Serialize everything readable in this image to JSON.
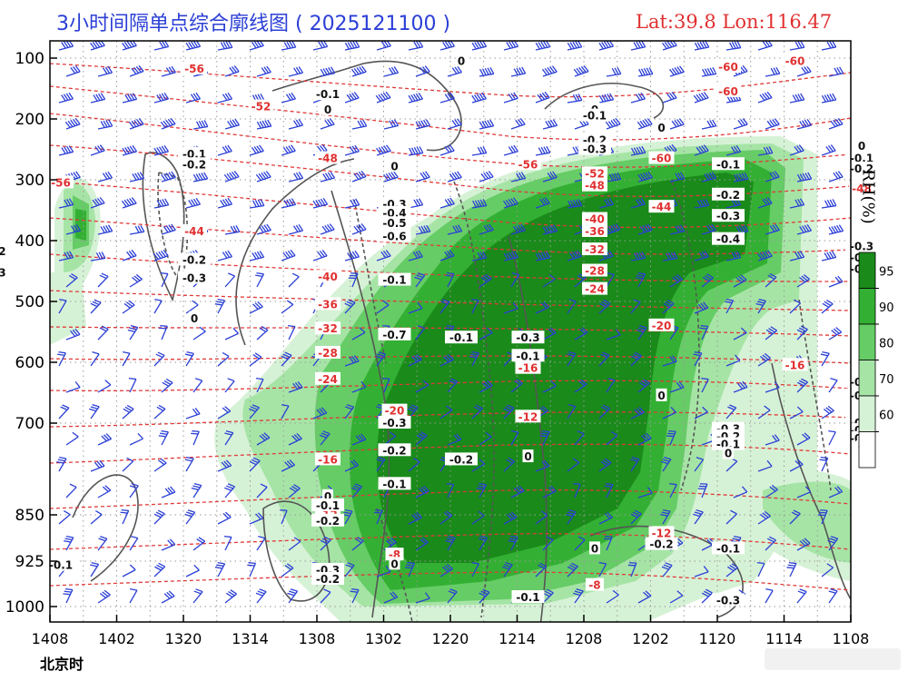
{
  "header": {
    "title": "3小时间隔单点综合廓线图 ( 2025121100 )",
    "location": "Lat:39.8  Lon:116.47"
  },
  "footer": {
    "time_zone_label": "北京时"
  },
  "colorbar": {
    "label": "RH(%)",
    "ticks": [
      "95",
      "90",
      "80",
      "70",
      "60"
    ],
    "colors": [
      "#1a8a1a",
      "#33b033",
      "#66cc66",
      "#a6e4a6",
      "#d6f2d6",
      "#ffffff"
    ]
  },
  "chart_data": {
    "type": "heatmap",
    "title": "3小时间隔单点综合廓线图 ( 2025121100 )",
    "xlabel": "北京时",
    "ylabel": "",
    "x_ticks": [
      "1408",
      "1402",
      "1320",
      "1314",
      "1308",
      "1302",
      "1220",
      "1214",
      "1208",
      "1202",
      "1120",
      "1114",
      "1108"
    ],
    "y_ticks": [
      "100",
      "200",
      "300",
      "400",
      "500",
      "600",
      "700",
      "850",
      "925",
      "1000"
    ],
    "y_levels_hpa": [
      100,
      200,
      300,
      400,
      500,
      600,
      700,
      850,
      925,
      1000
    ],
    "y_axis_inverted": true,
    "temperature_contour_labels": [
      {
        "value": "-56",
        "x": "1408",
        "y_hpa": 305
      },
      {
        "value": "-56",
        "x": "1320",
        "y_hpa": 118
      },
      {
        "value": "-52",
        "x": "1314",
        "y_hpa": 180
      },
      {
        "value": "-48",
        "x": "1308",
        "y_hpa": 265
      },
      {
        "value": "-44",
        "x": "1320",
        "y_hpa": 385
      },
      {
        "value": "-44",
        "x": "1302",
        "y_hpa": 365
      },
      {
        "value": "-40",
        "x": "1308",
        "y_hpa": 460
      },
      {
        "value": "-36",
        "x": "1308",
        "y_hpa": 505
      },
      {
        "value": "-32",
        "x": "1308",
        "y_hpa": 545
      },
      {
        "value": "-28",
        "x": "1308",
        "y_hpa": 585
      },
      {
        "value": "-24",
        "x": "1308",
        "y_hpa": 628
      },
      {
        "value": "-20",
        "x": "1302",
        "y_hpa": 680
      },
      {
        "value": "-16",
        "x": "1308",
        "y_hpa": 760
      },
      {
        "value": "-12",
        "x": "1308",
        "y_hpa": 850
      },
      {
        "value": "-8",
        "x": "1302",
        "y_hpa": 915
      },
      {
        "value": "-60",
        "x": "1120",
        "y_hpa": 115
      },
      {
        "value": "-60",
        "x": "1120",
        "y_hpa": 155
      },
      {
        "value": "-60",
        "x": "1114",
        "y_hpa": 105
      },
      {
        "value": "-60",
        "x": "1202",
        "y_hpa": 265
      },
      {
        "value": "-56",
        "x": "1214",
        "y_hpa": 275
      },
      {
        "value": "-52",
        "x": "1208",
        "y_hpa": 290
      },
      {
        "value": "-48",
        "x": "1208",
        "y_hpa": 310
      },
      {
        "value": "-48",
        "x": "1108",
        "y_hpa": 315
      },
      {
        "value": "-44",
        "x": "1202",
        "y_hpa": 345
      },
      {
        "value": "-40",
        "x": "1208",
        "y_hpa": 365
      },
      {
        "value": "-36",
        "x": "1208",
        "y_hpa": 385
      },
      {
        "value": "-32",
        "x": "1208",
        "y_hpa": 415
      },
      {
        "value": "-28",
        "x": "1208",
        "y_hpa": 450
      },
      {
        "value": "-24",
        "x": "1208",
        "y_hpa": 480
      },
      {
        "value": "-20",
        "x": "1202",
        "y_hpa": 540
      },
      {
        "value": "-16",
        "x": "1214",
        "y_hpa": 610
      },
      {
        "value": "-16",
        "x": "1114",
        "y_hpa": 605
      },
      {
        "value": "-12",
        "x": "1214",
        "y_hpa": 690
      },
      {
        "value": "-12",
        "x": "1202",
        "y_hpa": 880
      },
      {
        "value": "-8",
        "x": "1208",
        "y_hpa": 965
      }
    ],
    "vertical_velocity_labels": [
      {
        "value": "-0.1",
        "x": "1308",
        "y_hpa": 160
      },
      {
        "value": "0",
        "x": "1308",
        "y_hpa": 185
      },
      {
        "value": "-0.1",
        "x": "1320",
        "y_hpa": 258
      },
      {
        "value": "-0.2",
        "x": "1320",
        "y_hpa": 275
      },
      {
        "value": "0",
        "x": "1302",
        "y_hpa": 278
      },
      {
        "value": "-0.3",
        "x": "1302",
        "y_hpa": 340
      },
      {
        "value": "-0.4",
        "x": "1302",
        "y_hpa": 355
      },
      {
        "value": "-0.5",
        "x": "1302",
        "y_hpa": 372
      },
      {
        "value": "-0.6",
        "x": "1302",
        "y_hpa": 393
      },
      {
        "value": "-0.2",
        "x": "1320",
        "y_hpa": 432
      },
      {
        "value": "-0.3",
        "x": "1320",
        "y_hpa": 462
      },
      {
        "value": "-0.2",
        "x": "1226",
        "y_hpa": 418
      },
      {
        "value": "-0.3",
        "x": "1226",
        "y_hpa": 453
      },
      {
        "value": "-0.1",
        "x": "1302",
        "y_hpa": 465
      },
      {
        "value": "0",
        "x": "1320",
        "y_hpa": 528
      },
      {
        "value": "-0.7",
        "x": "1302",
        "y_hpa": 555
      },
      {
        "value": "-0.1",
        "x": "1220",
        "y_hpa": 560
      },
      {
        "value": "-0.3",
        "x": "1214",
        "y_hpa": 560
      },
      {
        "value": "-0.1",
        "x": "1214",
        "y_hpa": 590
      },
      {
        "value": "0",
        "x": "1220",
        "y_hpa": 105
      },
      {
        "value": "0",
        "x": "1208",
        "y_hpa": 185
      },
      {
        "value": "-0.1",
        "x": "1208",
        "y_hpa": 195
      },
      {
        "value": "-0.2",
        "x": "1208",
        "y_hpa": 235
      },
      {
        "value": "-0.3",
        "x": "1208",
        "y_hpa": 250
      },
      {
        "value": "0",
        "x": "1202",
        "y_hpa": 215
      },
      {
        "value": "-0.1",
        "x": "1120",
        "y_hpa": 275
      },
      {
        "value": "-0.2",
        "x": "1120",
        "y_hpa": 325
      },
      {
        "value": "-0.3",
        "x": "1120",
        "y_hpa": 360
      },
      {
        "value": "-0.4",
        "x": "1120",
        "y_hpa": 398
      },
      {
        "value": "0",
        "x": "1108",
        "y_hpa": 245
      },
      {
        "value": "-0.1",
        "x": "1108",
        "y_hpa": 265
      },
      {
        "value": "-0.2",
        "x": "1108",
        "y_hpa": 282
      },
      {
        "value": "-0.3",
        "x": "1108",
        "y_hpa": 410
      },
      {
        "value": "-0.4",
        "x": "1108",
        "y_hpa": 428
      },
      {
        "value": "-0.5",
        "x": "1108",
        "y_hpa": 447
      },
      {
        "value": "0",
        "x": "1202",
        "y_hpa": 655
      },
      {
        "value": "-0.3",
        "x": "1120",
        "y_hpa": 710
      },
      {
        "value": "-0.2",
        "x": "1120",
        "y_hpa": 722
      },
      {
        "value": "-0.1",
        "x": "1120",
        "y_hpa": 735
      },
      {
        "value": "0",
        "x": "1120",
        "y_hpa": 750
      },
      {
        "value": "-0.7",
        "x": "1108",
        "y_hpa": 633
      },
      {
        "value": "-0.6",
        "x": "1108",
        "y_hpa": 655
      },
      {
        "value": "-0.3",
        "x": "1108",
        "y_hpa": 700
      },
      {
        "value": "-0.2",
        "x": "1108",
        "y_hpa": 712
      },
      {
        "value": "-0.1",
        "x": "1108",
        "y_hpa": 725
      },
      {
        "value": "0",
        "x": "1108",
        "y_hpa": 740
      },
      {
        "value": "-0.3",
        "x": "1302",
        "y_hpa": 700
      },
      {
        "value": "-0.2",
        "x": "1302",
        "y_hpa": 745
      },
      {
        "value": "-0.1",
        "x": "1302",
        "y_hpa": 800
      },
      {
        "value": "-0.2",
        "x": "1220",
        "y_hpa": 760
      },
      {
        "value": "0",
        "x": "1214",
        "y_hpa": 755
      },
      {
        "value": "0",
        "x": "1302",
        "y_hpa": 930
      },
      {
        "value": "0",
        "x": "1308",
        "y_hpa": 820
      },
      {
        "value": "-0.1",
        "x": "1308",
        "y_hpa": 835
      },
      {
        "value": "-0.2",
        "x": "1308",
        "y_hpa": 860
      },
      {
        "value": "-0.3",
        "x": "1308",
        "y_hpa": 940
      },
      {
        "value": "-0.2",
        "x": "1308",
        "y_hpa": 955
      },
      {
        "value": "-0.1",
        "x": "1408",
        "y_hpa": 932
      },
      {
        "value": "-0.1",
        "x": "1214",
        "y_hpa": 985
      },
      {
        "value": "0",
        "x": "1208",
        "y_hpa": 905
      },
      {
        "value": "-0.2",
        "x": "1202",
        "y_hpa": 898
      },
      {
        "value": "-0.1",
        "x": "1120",
        "y_hpa": 905
      },
      {
        "value": "-0.3",
        "x": "1120",
        "y_hpa": 990
      }
    ],
    "rh_colorbar_levels": [
      95,
      90,
      80,
      70,
      60
    ],
    "grid": true,
    "legend": "right"
  }
}
